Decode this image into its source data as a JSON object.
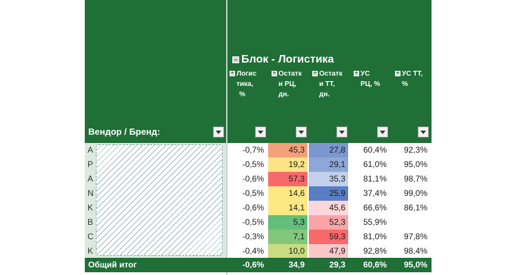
{
  "pivot": {
    "block_title": "Блок - Логистика",
    "row_header": "Вендор / Бренд:",
    "columns": [
      {
        "lines": [
          "Логис",
          "тика,",
          "%"
        ]
      },
      {
        "lines": [
          "Остатк",
          "и РЦ,",
          "дн."
        ]
      },
      {
        "lines": [
          "Остатк",
          "и ТТ,",
          "дн."
        ]
      },
      {
        "lines": [
          "УС",
          "РЦ, %"
        ]
      },
      {
        "lines": [
          "УС ТТ,",
          "%"
        ]
      }
    ],
    "rows": [
      {
        "initial": "A",
        "log": "-0,7%",
        "rc": "45,3",
        "tt": "27,8",
        "usrc": "60,4%",
        "ustt": "92,3%",
        "rc_color": "#f4a17a",
        "tt_color": "#7a97cf"
      },
      {
        "initial": "P",
        "log": "-0,5%",
        "rc": "19,2",
        "tt": "29,1",
        "usrc": "61,0%",
        "ustt": "95,0%",
        "rc_color": "#fce486",
        "tt_color": "#8ea7d8"
      },
      {
        "initial": "A",
        "log": "-0,6%",
        "rc": "57,3",
        "tt": "35,3",
        "usrc": "81,1%",
        "ustt": "98,7%",
        "rc_color": "#f8696b",
        "tt_color": "#c2d0ec"
      },
      {
        "initial": "N",
        "log": "-0,5%",
        "rc": "14,6",
        "tt": "25,9",
        "usrc": "37,4%",
        "ustt": "99,0%",
        "rc_color": "#fde983",
        "tt_color": "#5a7ec4"
      },
      {
        "initial": "K",
        "log": "-0,6%",
        "rc": "14,1",
        "tt": "45,6",
        "usrc": "66,6%",
        "ustt": "86,1%",
        "rc_color": "#fde983",
        "tt_color": "#fbd7da"
      },
      {
        "initial": "B",
        "log": "-0,5%",
        "rc": "5,3",
        "tt": "52,3",
        "usrc": "55,9%",
        "ustt": "",
        "rc_color": "#63be7b",
        "tt_color": "#f9a4a7"
      },
      {
        "initial": "C",
        "log": "-0,3%",
        "rc": "7,1",
        "tt": "59,3",
        "usrc": "81,0%",
        "ustt": "97,8%",
        "rc_color": "#82c77c",
        "tt_color": "#f8696b"
      },
      {
        "initial": "K",
        "log": "-0,4%",
        "rc": "10,0",
        "tt": "47,9",
        "usrc": "92,8%",
        "ustt": "98,4%",
        "rc_color": "#c9dc81",
        "tt_color": "#fbc6c8"
      }
    ],
    "total": {
      "label": "Общий итог",
      "log": "-0,6%",
      "rc": "34,9",
      "tt": "29,3",
      "usrc": "60,6%",
      "ustt": "95,0%"
    },
    "colors": {
      "header_green": "#1f6f37",
      "vendor_cell": "#dce9df"
    }
  }
}
